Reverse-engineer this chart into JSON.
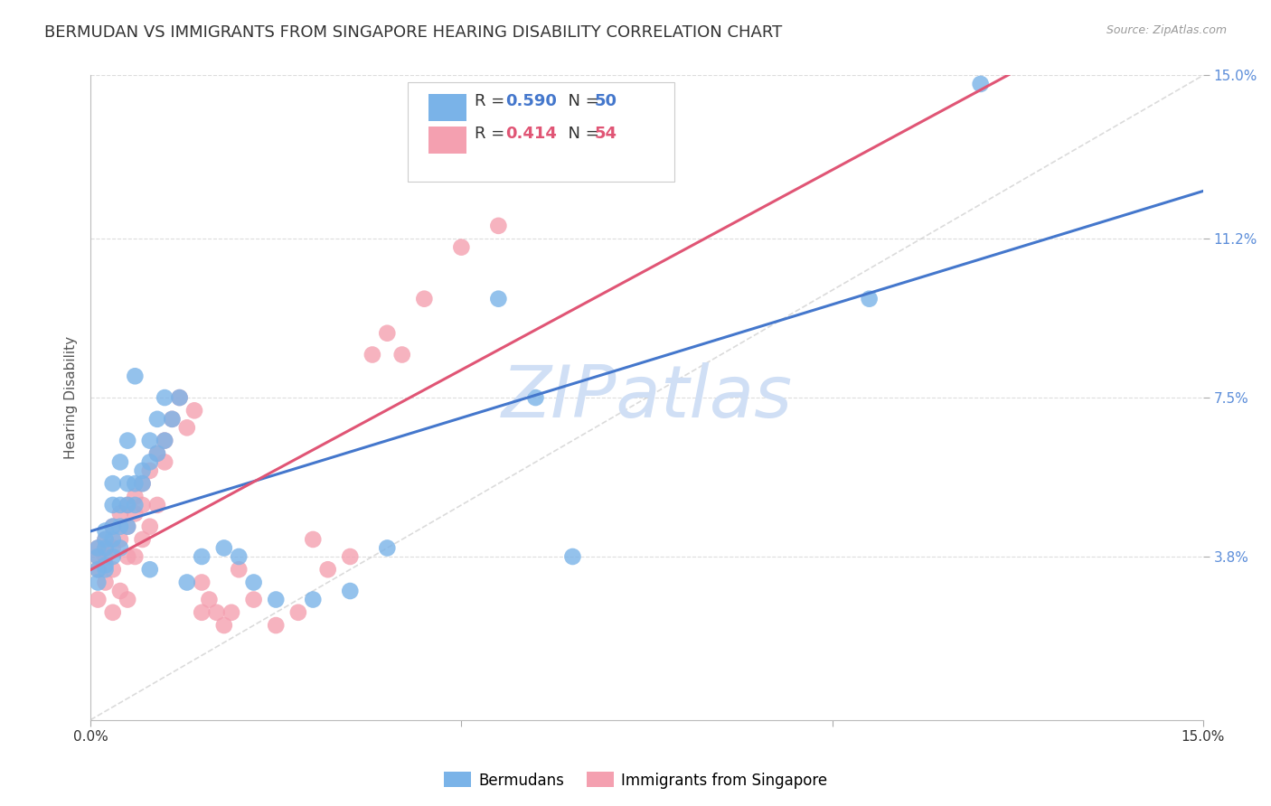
{
  "title": "BERMUDAN VS IMMIGRANTS FROM SINGAPORE HEARING DISABILITY CORRELATION CHART",
  "source": "Source: ZipAtlas.com",
  "ylabel": "Hearing Disability",
  "xlim": [
    0.0,
    0.15
  ],
  "ylim": [
    0.0,
    0.15
  ],
  "ytick_labels": [
    "3.8%",
    "7.5%",
    "11.2%",
    "15.0%"
  ],
  "ytick_positions": [
    0.038,
    0.075,
    0.112,
    0.15
  ],
  "xtick_positions": [
    0.0,
    0.05,
    0.1,
    0.15
  ],
  "bermudan_color": "#7ab3e8",
  "singapore_color": "#f4a0b0",
  "bermudan_line_color": "#4477cc",
  "singapore_line_color": "#e05575",
  "diagonal_color": "#cccccc",
  "background_color": "#ffffff",
  "grid_color": "#dddddd",
  "watermark_color": "#d0dff5",
  "title_fontsize": 13,
  "label_fontsize": 11,
  "tick_fontsize": 11,
  "bermudan_x": [
    0.001,
    0.001,
    0.001,
    0.001,
    0.002,
    0.002,
    0.002,
    0.002,
    0.002,
    0.003,
    0.003,
    0.003,
    0.003,
    0.003,
    0.004,
    0.004,
    0.004,
    0.004,
    0.005,
    0.005,
    0.005,
    0.005,
    0.006,
    0.006,
    0.006,
    0.007,
    0.007,
    0.008,
    0.008,
    0.008,
    0.009,
    0.009,
    0.01,
    0.01,
    0.011,
    0.012,
    0.013,
    0.015,
    0.018,
    0.02,
    0.022,
    0.025,
    0.03,
    0.035,
    0.04,
    0.055,
    0.06,
    0.065,
    0.105,
    0.12
  ],
  "bermudan_y": [
    0.035,
    0.038,
    0.04,
    0.032,
    0.036,
    0.04,
    0.042,
    0.044,
    0.035,
    0.038,
    0.042,
    0.045,
    0.05,
    0.055,
    0.04,
    0.045,
    0.05,
    0.06,
    0.045,
    0.05,
    0.055,
    0.065,
    0.05,
    0.055,
    0.08,
    0.055,
    0.058,
    0.06,
    0.065,
    0.035,
    0.062,
    0.07,
    0.065,
    0.075,
    0.07,
    0.075,
    0.032,
    0.038,
    0.04,
    0.038,
    0.032,
    0.028,
    0.028,
    0.03,
    0.04,
    0.098,
    0.075,
    0.038,
    0.098,
    0.148
  ],
  "singapore_x": [
    0.001,
    0.001,
    0.001,
    0.001,
    0.002,
    0.002,
    0.002,
    0.002,
    0.003,
    0.003,
    0.003,
    0.003,
    0.004,
    0.004,
    0.004,
    0.005,
    0.005,
    0.005,
    0.005,
    0.006,
    0.006,
    0.006,
    0.007,
    0.007,
    0.007,
    0.008,
    0.008,
    0.009,
    0.009,
    0.01,
    0.01,
    0.011,
    0.012,
    0.013,
    0.014,
    0.015,
    0.015,
    0.016,
    0.017,
    0.018,
    0.019,
    0.02,
    0.022,
    0.025,
    0.028,
    0.03,
    0.032,
    0.035,
    0.038,
    0.04,
    0.042,
    0.045,
    0.05,
    0.055
  ],
  "singapore_y": [
    0.038,
    0.04,
    0.035,
    0.028,
    0.04,
    0.042,
    0.038,
    0.032,
    0.045,
    0.04,
    0.035,
    0.025,
    0.048,
    0.042,
    0.03,
    0.05,
    0.045,
    0.038,
    0.028,
    0.052,
    0.048,
    0.038,
    0.055,
    0.05,
    0.042,
    0.058,
    0.045,
    0.062,
    0.05,
    0.065,
    0.06,
    0.07,
    0.075,
    0.068,
    0.072,
    0.025,
    0.032,
    0.028,
    0.025,
    0.022,
    0.025,
    0.035,
    0.028,
    0.022,
    0.025,
    0.042,
    0.035,
    0.038,
    0.085,
    0.09,
    0.085,
    0.098,
    0.11,
    0.115
  ],
  "legend_r1": "R = 0.590",
  "legend_n1": "N = 50",
  "legend_r2": "R = 0.414",
  "legend_n2": "N = 54",
  "blue_r_val": "0.590",
  "blue_n_val": "50",
  "pink_r_val": "0.414",
  "pink_n_val": "54"
}
